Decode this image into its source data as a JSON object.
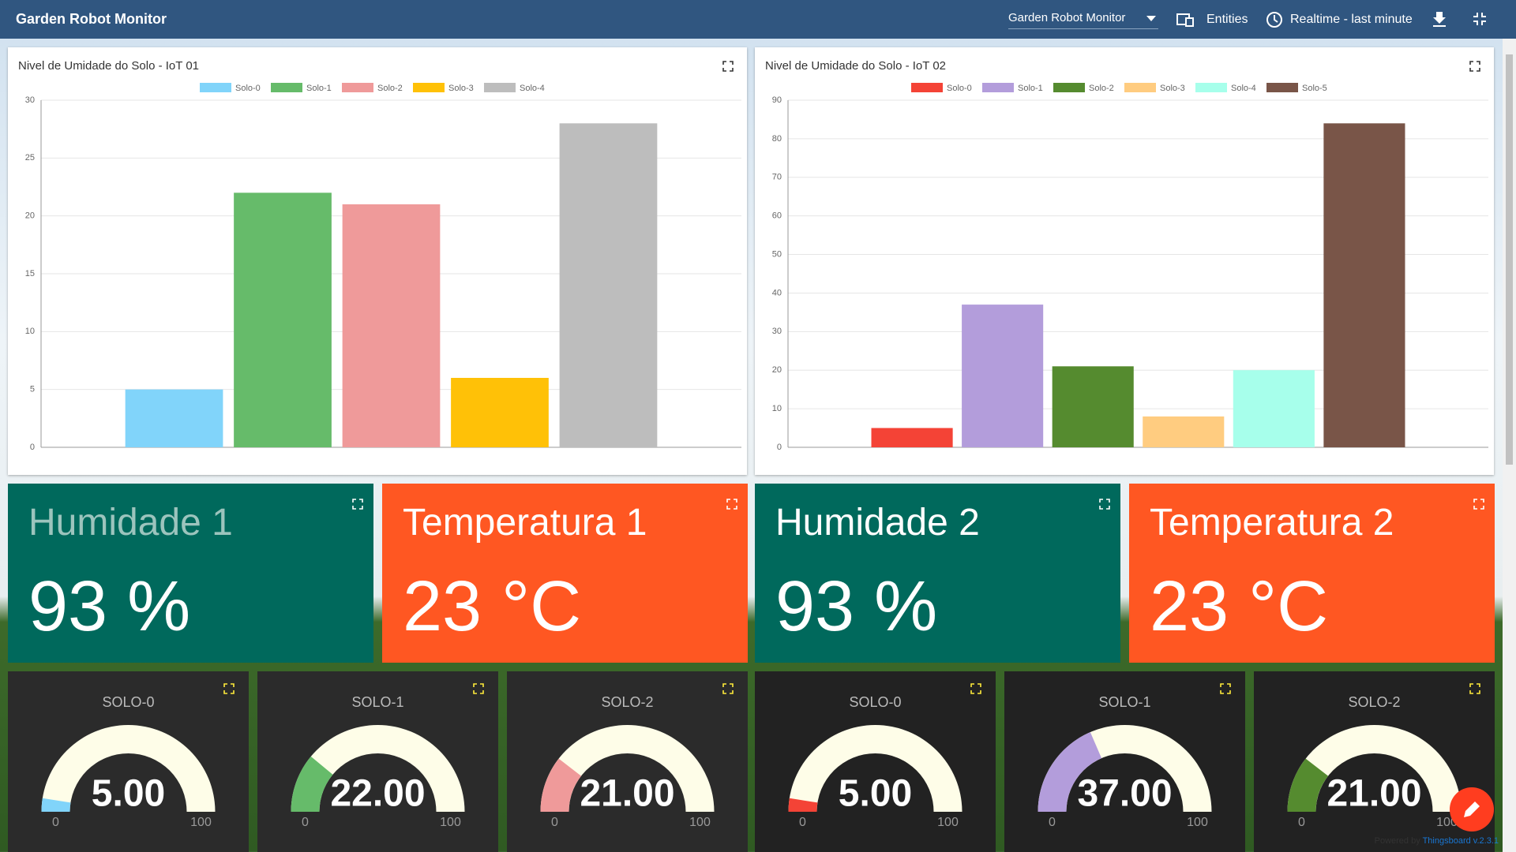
{
  "header": {
    "title": "Garden Robot Monitor",
    "dashboard": "Garden Robot Monitor",
    "entities": "Entities",
    "timewindow": "Realtime - last minute"
  },
  "chart_data": [
    {
      "type": "bar",
      "title": "Nivel de Umidade do Solo - IoT 01",
      "ylim": [
        0,
        30
      ],
      "yticks": [
        0,
        5,
        10,
        15,
        20,
        25,
        30
      ],
      "grid": true,
      "series": [
        {
          "name": "Solo-0",
          "color": "#81d4fa",
          "values": [
            5
          ]
        },
        {
          "name": "Solo-1",
          "color": "#66bb6a",
          "values": [
            22
          ]
        },
        {
          "name": "Solo-2",
          "color": "#ef9a9a",
          "values": [
            21
          ]
        },
        {
          "name": "Solo-3",
          "color": "#ffc107",
          "values": [
            6
          ]
        },
        {
          "name": "Solo-4",
          "color": "#bdbdbd",
          "values": [
            28
          ]
        }
      ]
    },
    {
      "type": "bar",
      "title": "Nivel de Umidade do Solo - IoT 02",
      "ylim": [
        0,
        90
      ],
      "yticks": [
        0,
        10,
        20,
        30,
        40,
        50,
        60,
        70,
        80,
        90
      ],
      "grid": true,
      "series": [
        {
          "name": "Solo-0",
          "color": "#f44336",
          "values": [
            5
          ]
        },
        {
          "name": "Solo-1",
          "color": "#b39ddb",
          "values": [
            37
          ]
        },
        {
          "name": "Solo-2",
          "color": "#558b2f",
          "values": [
            21
          ]
        },
        {
          "name": "Solo-3",
          "color": "#ffcc80",
          "values": [
            8
          ]
        },
        {
          "name": "Solo-4",
          "color": "#a7ffeb",
          "values": [
            20
          ]
        },
        {
          "name": "Solo-5",
          "color": "#795548",
          "values": [
            84
          ]
        }
      ]
    }
  ],
  "cards": [
    {
      "title": "Humidade 1",
      "value": "93 %",
      "color": "#00695c"
    },
    {
      "title": "Temperatura 1",
      "value": "23 °C",
      "color": "#ff5722"
    },
    {
      "title": "Humidade 2",
      "value": "93 %",
      "color": "#00695c"
    },
    {
      "title": "Temperatura 2",
      "value": "23 °C",
      "color": "#ff5722"
    }
  ],
  "gauges": [
    {
      "title": "SOLO-0",
      "value": 5,
      "value_label": "5.00",
      "min": 0,
      "max": 100,
      "color": "#81d4fa"
    },
    {
      "title": "SOLO-1",
      "value": 22,
      "value_label": "22.00",
      "min": 0,
      "max": 100,
      "color": "#66bb6a"
    },
    {
      "title": "SOLO-2",
      "value": 21,
      "value_label": "21.00",
      "min": 0,
      "max": 100,
      "color": "#ef9a9a"
    },
    {
      "title": "SOLO-0",
      "value": 5,
      "value_label": "5.00",
      "min": 0,
      "max": 100,
      "color": "#f44336"
    },
    {
      "title": "SOLO-1",
      "value": 37,
      "value_label": "37.00",
      "min": 0,
      "max": 100,
      "color": "#b39ddb"
    },
    {
      "title": "SOLO-2",
      "value": 21,
      "value_label": "21.00",
      "min": 0,
      "max": 100,
      "color": "#558b2f"
    }
  ],
  "footer": {
    "powered": "Powered by",
    "version": "Thingsboard v.2.3.1"
  }
}
